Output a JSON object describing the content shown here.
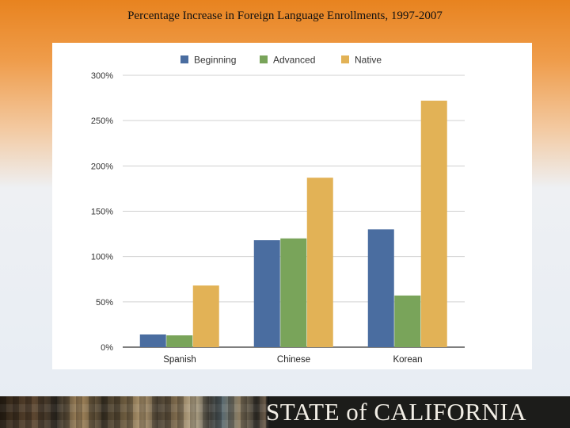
{
  "slide": {
    "title": "Percentage Increase in Foreign Language Enrollments, 1997-2007",
    "footer_text": "STATE of CALIFORNIA"
  },
  "chart_data": {
    "type": "bar",
    "title": "",
    "xlabel": "",
    "ylabel": "",
    "categories": [
      "Spanish",
      "Chinese",
      "Korean"
    ],
    "series": [
      {
        "name": "Beginning",
        "color": "#4a6da0",
        "values": [
          14,
          118,
          130
        ]
      },
      {
        "name": "Advanced",
        "color": "#79a45a",
        "values": [
          13,
          120,
          57
        ]
      },
      {
        "name": "Native",
        "color": "#e2b256",
        "values": [
          68,
          187,
          272
        ]
      }
    ],
    "ylim": [
      0,
      300
    ],
    "yticks": [
      0,
      50,
      100,
      150,
      200,
      250,
      300
    ],
    "ytick_labels": [
      "0%",
      "50%",
      "100%",
      "150%",
      "200%",
      "250%",
      "300%"
    ],
    "grid": true,
    "legend_position": "top"
  }
}
